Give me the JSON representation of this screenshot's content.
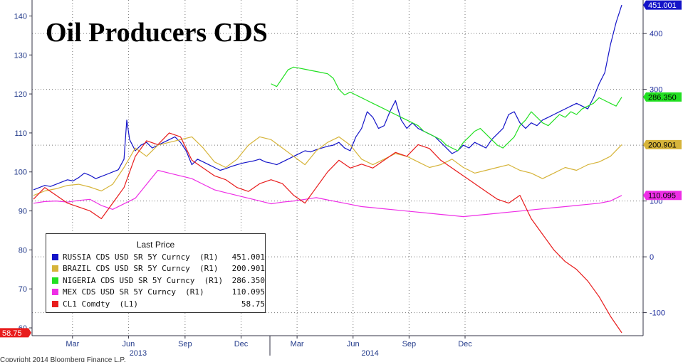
{
  "chart_data": {
    "type": "line",
    "title": "Oil Producers CDS",
    "x_tick_labels": [
      "Mar",
      "Jun",
      "Sep",
      "Dec",
      "Mar",
      "Jun",
      "Sep",
      "Dec"
    ],
    "year_labels": [
      "2013",
      "2014"
    ],
    "left_axis": {
      "ticks": [
        60,
        70,
        80,
        90,
        100,
        110,
        120,
        130,
        140
      ],
      "range": [
        58,
        143
      ]
    },
    "right_axis": {
      "ticks": [
        -100,
        0,
        100,
        200,
        300,
        400
      ],
      "range": [
        -140,
        455
      ]
    },
    "legend": {
      "header": "Last Price",
      "placement": "bottom-left",
      "entries": [
        {
          "name": "RUSSIA CDS USD SR 5Y Curncy  (R1)",
          "value": "451.001",
          "color": "#1414c8"
        },
        {
          "name": "BRAZIL CDS USD SR 5Y Curncy  (R1)",
          "value": "200.901",
          "color": "#d6b43a"
        },
        {
          "name": "NIGERIA CDS USD SR 5Y Curncy  (R1)",
          "value": "286.350",
          "color": "#22e022"
        },
        {
          "name": "MEX CDS USD SR 5Y Curncy  (R1)",
          "value": "110.095",
          "color": "#ee2ee6"
        },
        {
          "name": "CL1 Comdty  (L1)",
          "value": "58.75",
          "color": "#e81c1c"
        }
      ]
    },
    "last_value_tags": [
      "451.001",
      "286.350",
      "200.901",
      "110.095",
      "58.75"
    ],
    "grid": true,
    "series": [
      {
        "name": "RUSSIA CDS USD SR 5Y Curncy  (R1)",
        "axis": "right",
        "color": "#1414c8",
        "x": [
          0,
          1,
          2,
          3,
          4,
          5,
          6,
          7,
          8,
          9,
          10,
          11,
          12,
          13,
          14,
          15,
          16,
          16.5,
          17,
          18,
          19,
          20,
          21,
          22,
          23,
          24,
          25,
          26,
          27,
          28,
          29,
          30,
          31,
          32,
          33,
          34,
          35,
          36,
          37,
          38,
          39,
          40,
          41,
          42,
          43,
          44,
          45,
          46,
          47,
          48,
          49,
          50,
          51,
          52,
          53,
          54,
          55,
          56,
          57,
          58,
          59,
          60,
          61,
          62,
          63,
          64,
          65,
          66,
          67,
          68,
          69,
          70,
          71,
          72,
          73,
          74,
          75,
          76,
          77,
          78,
          79,
          80,
          81,
          82,
          83,
          84,
          85,
          86,
          87,
          88,
          89,
          90,
          91,
          92,
          93,
          94,
          95,
          96,
          97,
          98,
          99,
          100,
          101,
          102,
          103,
          104
        ],
        "values": [
          120,
          124,
          128,
          126,
          130,
          134,
          138,
          136,
          142,
          150,
          146,
          140,
          144,
          148,
          152,
          156,
          175,
          245,
          210,
          190,
          200,
          205,
          195,
          200,
          205,
          210,
          215,
          205,
          190,
          165,
          175,
          170,
          165,
          160,
          155,
          158,
          162,
          165,
          168,
          170,
          172,
          175,
          170,
          168,
          165,
          170,
          175,
          180,
          185,
          190,
          188,
          192,
          195,
          198,
          200,
          205,
          195,
          190,
          215,
          230,
          260,
          250,
          230,
          235,
          260,
          280,
          245,
          230,
          240,
          230,
          225,
          220,
          215,
          205,
          195,
          185,
          190,
          200,
          195,
          205,
          200,
          195,
          210,
          220,
          230,
          255,
          260,
          240,
          230,
          240,
          235,
          245,
          250,
          255,
          260,
          265,
          270,
          275,
          270,
          265,
          285,
          310,
          330,
          380,
          420,
          451
        ]
      },
      {
        "name": "BRAZIL CDS USD SR 5Y Curncy  (R1)",
        "axis": "right",
        "color": "#d6b43a",
        "x": [
          0,
          2,
          4,
          6,
          8,
          10,
          12,
          14,
          16,
          18,
          20,
          22,
          24,
          26,
          28,
          30,
          32,
          34,
          36,
          38,
          40,
          42,
          44,
          46,
          48,
          50,
          52,
          54,
          56,
          58,
          60,
          62,
          64,
          66,
          68,
          70,
          72,
          74,
          76,
          78,
          80,
          82,
          84,
          86,
          88,
          90,
          92,
          94,
          96,
          98,
          100,
          102,
          104
        ],
        "values": [
          110,
          118,
          122,
          128,
          130,
          125,
          118,
          130,
          160,
          195,
          180,
          200,
          205,
          210,
          215,
          195,
          170,
          160,
          175,
          200,
          215,
          210,
          195,
          180,
          165,
          190,
          205,
          215,
          200,
          175,
          165,
          175,
          185,
          180,
          170,
          160,
          165,
          175,
          160,
          150,
          155,
          160,
          165,
          155,
          150,
          140,
          150,
          160,
          155,
          165,
          170,
          180,
          201
        ]
      },
      {
        "name": "NIGERIA CDS USD SR 5Y Curncy  (R1)",
        "axis": "right",
        "color": "#22e022",
        "x": [
          42,
          43,
          44,
          45,
          46,
          47,
          48,
          49,
          50,
          51,
          52,
          53,
          54,
          55,
          56,
          57,
          58,
          59,
          60,
          61,
          62,
          63,
          64,
          65,
          66,
          67,
          68,
          69,
          70,
          71,
          72,
          73,
          74,
          75,
          76,
          77,
          78,
          79,
          80,
          81,
          82,
          83,
          84,
          85,
          86,
          87,
          88,
          89,
          90,
          91,
          92,
          93,
          94,
          95,
          96,
          97,
          98,
          99,
          100,
          101,
          102,
          103,
          104
        ],
        "values": [
          310,
          305,
          320,
          335,
          340,
          338,
          336,
          334,
          332,
          330,
          328,
          320,
          300,
          290,
          295,
          290,
          285,
          280,
          275,
          270,
          265,
          260,
          255,
          250,
          245,
          240,
          235,
          225,
          220,
          215,
          210,
          200,
          195,
          190,
          205,
          215,
          225,
          230,
          220,
          210,
          200,
          195,
          205,
          215,
          235,
          245,
          260,
          250,
          240,
          235,
          245,
          255,
          250,
          260,
          255,
          265,
          270,
          275,
          285,
          280,
          275,
          270,
          286
        ]
      },
      {
        "name": "MEX CDS USD SR 5Y Curncy  (R1)",
        "axis": "right",
        "color": "#ee2ee6",
        "x": [
          0,
          2,
          4,
          6,
          8,
          10,
          12,
          14,
          16,
          18,
          20,
          22,
          24,
          26,
          28,
          30,
          32,
          34,
          36,
          38,
          40,
          42,
          44,
          46,
          48,
          50,
          52,
          54,
          56,
          58,
          60,
          62,
          64,
          66,
          68,
          70,
          72,
          74,
          76,
          78,
          80,
          82,
          84,
          86,
          88,
          90,
          92,
          94,
          96,
          98,
          100,
          102,
          104
        ],
        "values": [
          96,
          99,
          100,
          98,
          101,
          103,
          92,
          85,
          95,
          105,
          130,
          155,
          150,
          145,
          140,
          130,
          120,
          115,
          110,
          105,
          100,
          95,
          98,
          100,
          103,
          106,
          102,
          98,
          94,
          90,
          88,
          86,
          84,
          82,
          80,
          78,
          76,
          74,
          72,
          74,
          76,
          78,
          80,
          82,
          84,
          86,
          88,
          90,
          92,
          94,
          96,
          100,
          110
        ]
      },
      {
        "name": "CL1 Comdty  (L1)",
        "axis": "left",
        "color": "#e81c1c",
        "x": [
          0,
          2,
          4,
          6,
          8,
          10,
          12,
          14,
          16,
          18,
          20,
          22,
          24,
          26,
          28,
          30,
          32,
          34,
          36,
          38,
          40,
          42,
          44,
          46,
          48,
          50,
          52,
          54,
          56,
          58,
          60,
          62,
          64,
          66,
          68,
          70,
          72,
          74,
          76,
          78,
          80,
          82,
          84,
          86,
          88,
          90,
          92,
          94,
          96,
          98,
          100,
          102,
          104
        ],
        "values": [
          93,
          96,
          94,
          92,
          91,
          90,
          88,
          92,
          96,
          104,
          108,
          107,
          110,
          109,
          103,
          101,
          99,
          98,
          96,
          95,
          97,
          98,
          97,
          94,
          92,
          96,
          100,
          103,
          101,
          102,
          101,
          103,
          105,
          104,
          107,
          106,
          103,
          101,
          99,
          97,
          95,
          93,
          92,
          94,
          88,
          84,
          80,
          77,
          75,
          72,
          68,
          63,
          58.75
        ]
      }
    ]
  },
  "footer_text": "Copyright 2014 Bloomberg Finance L.P."
}
